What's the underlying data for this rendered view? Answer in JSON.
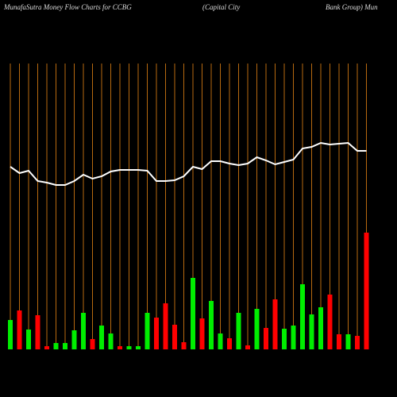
{
  "chart_data": {
    "type": "bar-line",
    "title_parts": [
      "MunafaSutra  Money Flow  Charts for CCBG",
      "(Capital City",
      "Bank Group) Mun"
    ],
    "ylim": [
      0,
      360
    ],
    "grid_color": "#b86a10",
    "line_color": "#ffffff",
    "bars": {
      "values": [
        37,
        49,
        25,
        43,
        4,
        8,
        8,
        24,
        46,
        13,
        30,
        20,
        4,
        4,
        4,
        46,
        40,
        58,
        31,
        9,
        90,
        39,
        61,
        20,
        14,
        46,
        5,
        51,
        27,
        63,
        26,
        30,
        82,
        44,
        53,
        69,
        19,
        19,
        17,
        147
      ],
      "colors": [
        "#00ee00",
        "#ff0000",
        "#00ee00",
        "#ff0000",
        "#ff0000",
        "#00ee00",
        "#00ee00",
        "#00ee00",
        "#00ee00",
        "#ff0000",
        "#00ee00",
        "#00ee00",
        "#ff0000",
        "#00ee00",
        "#00ee00",
        "#00ee00",
        "#ff0000",
        "#ff0000",
        "#ff0000",
        "#ff0000",
        "#00ee00",
        "#ff0000",
        "#00ee00",
        "#00ee00",
        "#ff0000",
        "#00ee00",
        "#ff0000",
        "#00ee00",
        "#ff0000",
        "#ff0000",
        "#00ee00",
        "#00ee00",
        "#00ee00",
        "#00ee00",
        "#00ee00",
        "#ff0000",
        "#ff0000",
        "#00ee00",
        "#ff0000",
        "#ff0000"
      ]
    },
    "line": {
      "values": [
        230,
        222,
        225,
        212,
        210,
        207,
        207,
        212,
        220,
        215,
        218,
        224,
        226,
        226,
        226,
        225,
        212,
        212,
        213,
        218,
        230,
        227,
        237,
        237,
        234,
        232,
        234,
        242,
        238,
        233,
        236,
        239,
        253,
        255,
        260,
        258,
        259,
        260,
        250,
        250
      ]
    }
  }
}
